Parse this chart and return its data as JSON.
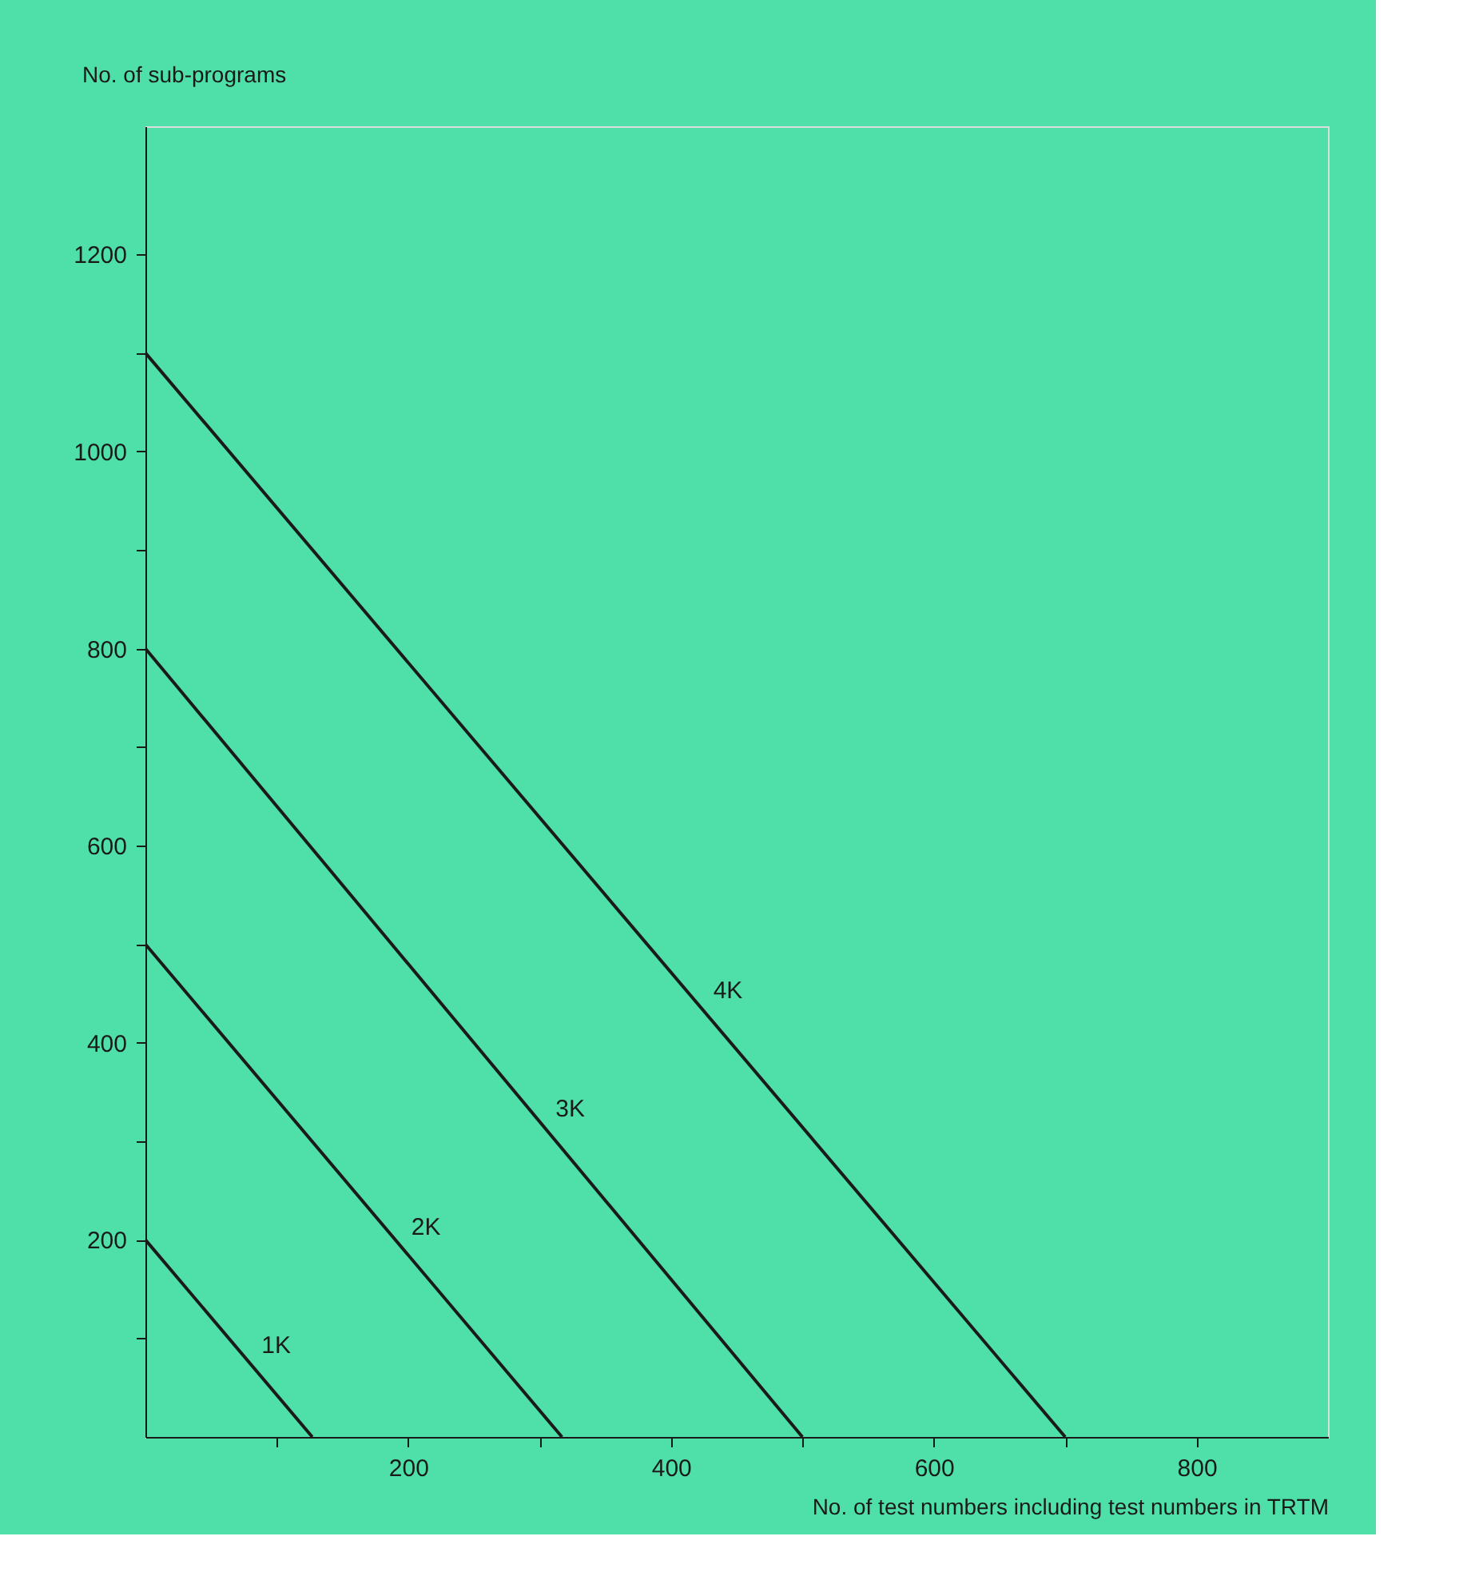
{
  "chart_data": {
    "type": "line",
    "xlabel": "No. of test numbers including test numbers in TRTM",
    "ylabel": "No. of sub-programs",
    "xlim": [
      0,
      900
    ],
    "ylim": [
      0,
      1330
    ],
    "xticks": [
      {
        "value": 100,
        "label": null
      },
      200,
      {
        "value": 300,
        "label": null
      },
      400,
      {
        "value": 500,
        "label": null
      },
      600,
      {
        "value": 700,
        "label": null
      },
      800
    ],
    "yticks": [
      {
        "value": 100,
        "label": null
      },
      200,
      {
        "value": 300,
        "label": null
      },
      400,
      {
        "value": 500,
        "label": null
      },
      600,
      {
        "value": 700,
        "label": null
      },
      800,
      {
        "value": 900,
        "label": null
      },
      1000,
      {
        "value": 1100,
        "label": null
      },
      1200
    ],
    "grid": false,
    "legend": false,
    "marker": "none",
    "line_style": "solid",
    "series": [
      {
        "name": "1K",
        "color": "#1a1a1a",
        "x": [
          0,
          127
        ],
        "values": [
          200,
          0
        ]
      },
      {
        "name": "2K",
        "color": "#1a1a1a",
        "x": [
          0,
          317
        ],
        "values": [
          500,
          0
        ]
      },
      {
        "name": "3K",
        "color": "#1a1a1a",
        "x": [
          0,
          500
        ],
        "values": [
          800,
          0
        ]
      },
      {
        "name": "4K",
        "color": "#1a1a1a",
        "x": [
          0,
          700
        ],
        "values": [
          1100,
          0
        ]
      }
    ]
  }
}
